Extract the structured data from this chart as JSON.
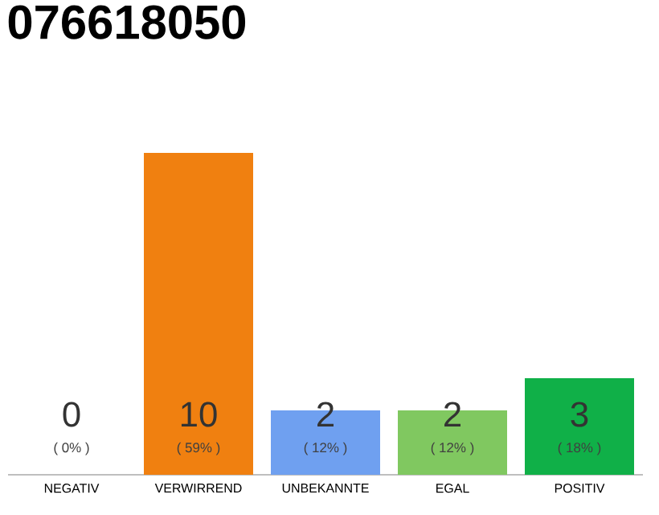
{
  "chart_data": {
    "type": "bar",
    "title": "076618050",
    "categories": [
      "NEGATIV",
      "VERWIRREND",
      "UNBEKANNTE",
      "EGAL",
      "POSITIV"
    ],
    "values": [
      0,
      10,
      2,
      2,
      3
    ],
    "colors": [
      "#e05050",
      "#f08010",
      "#6fa0f0",
      "#80c860",
      "#10b048"
    ],
    "value_labels": [
      "0",
      "10",
      "2",
      "2",
      "3"
    ],
    "annotations": [
      "( 0% )",
      "( 59% )",
      "( 12% )",
      "( 12% )",
      "( 18% )"
    ]
  }
}
